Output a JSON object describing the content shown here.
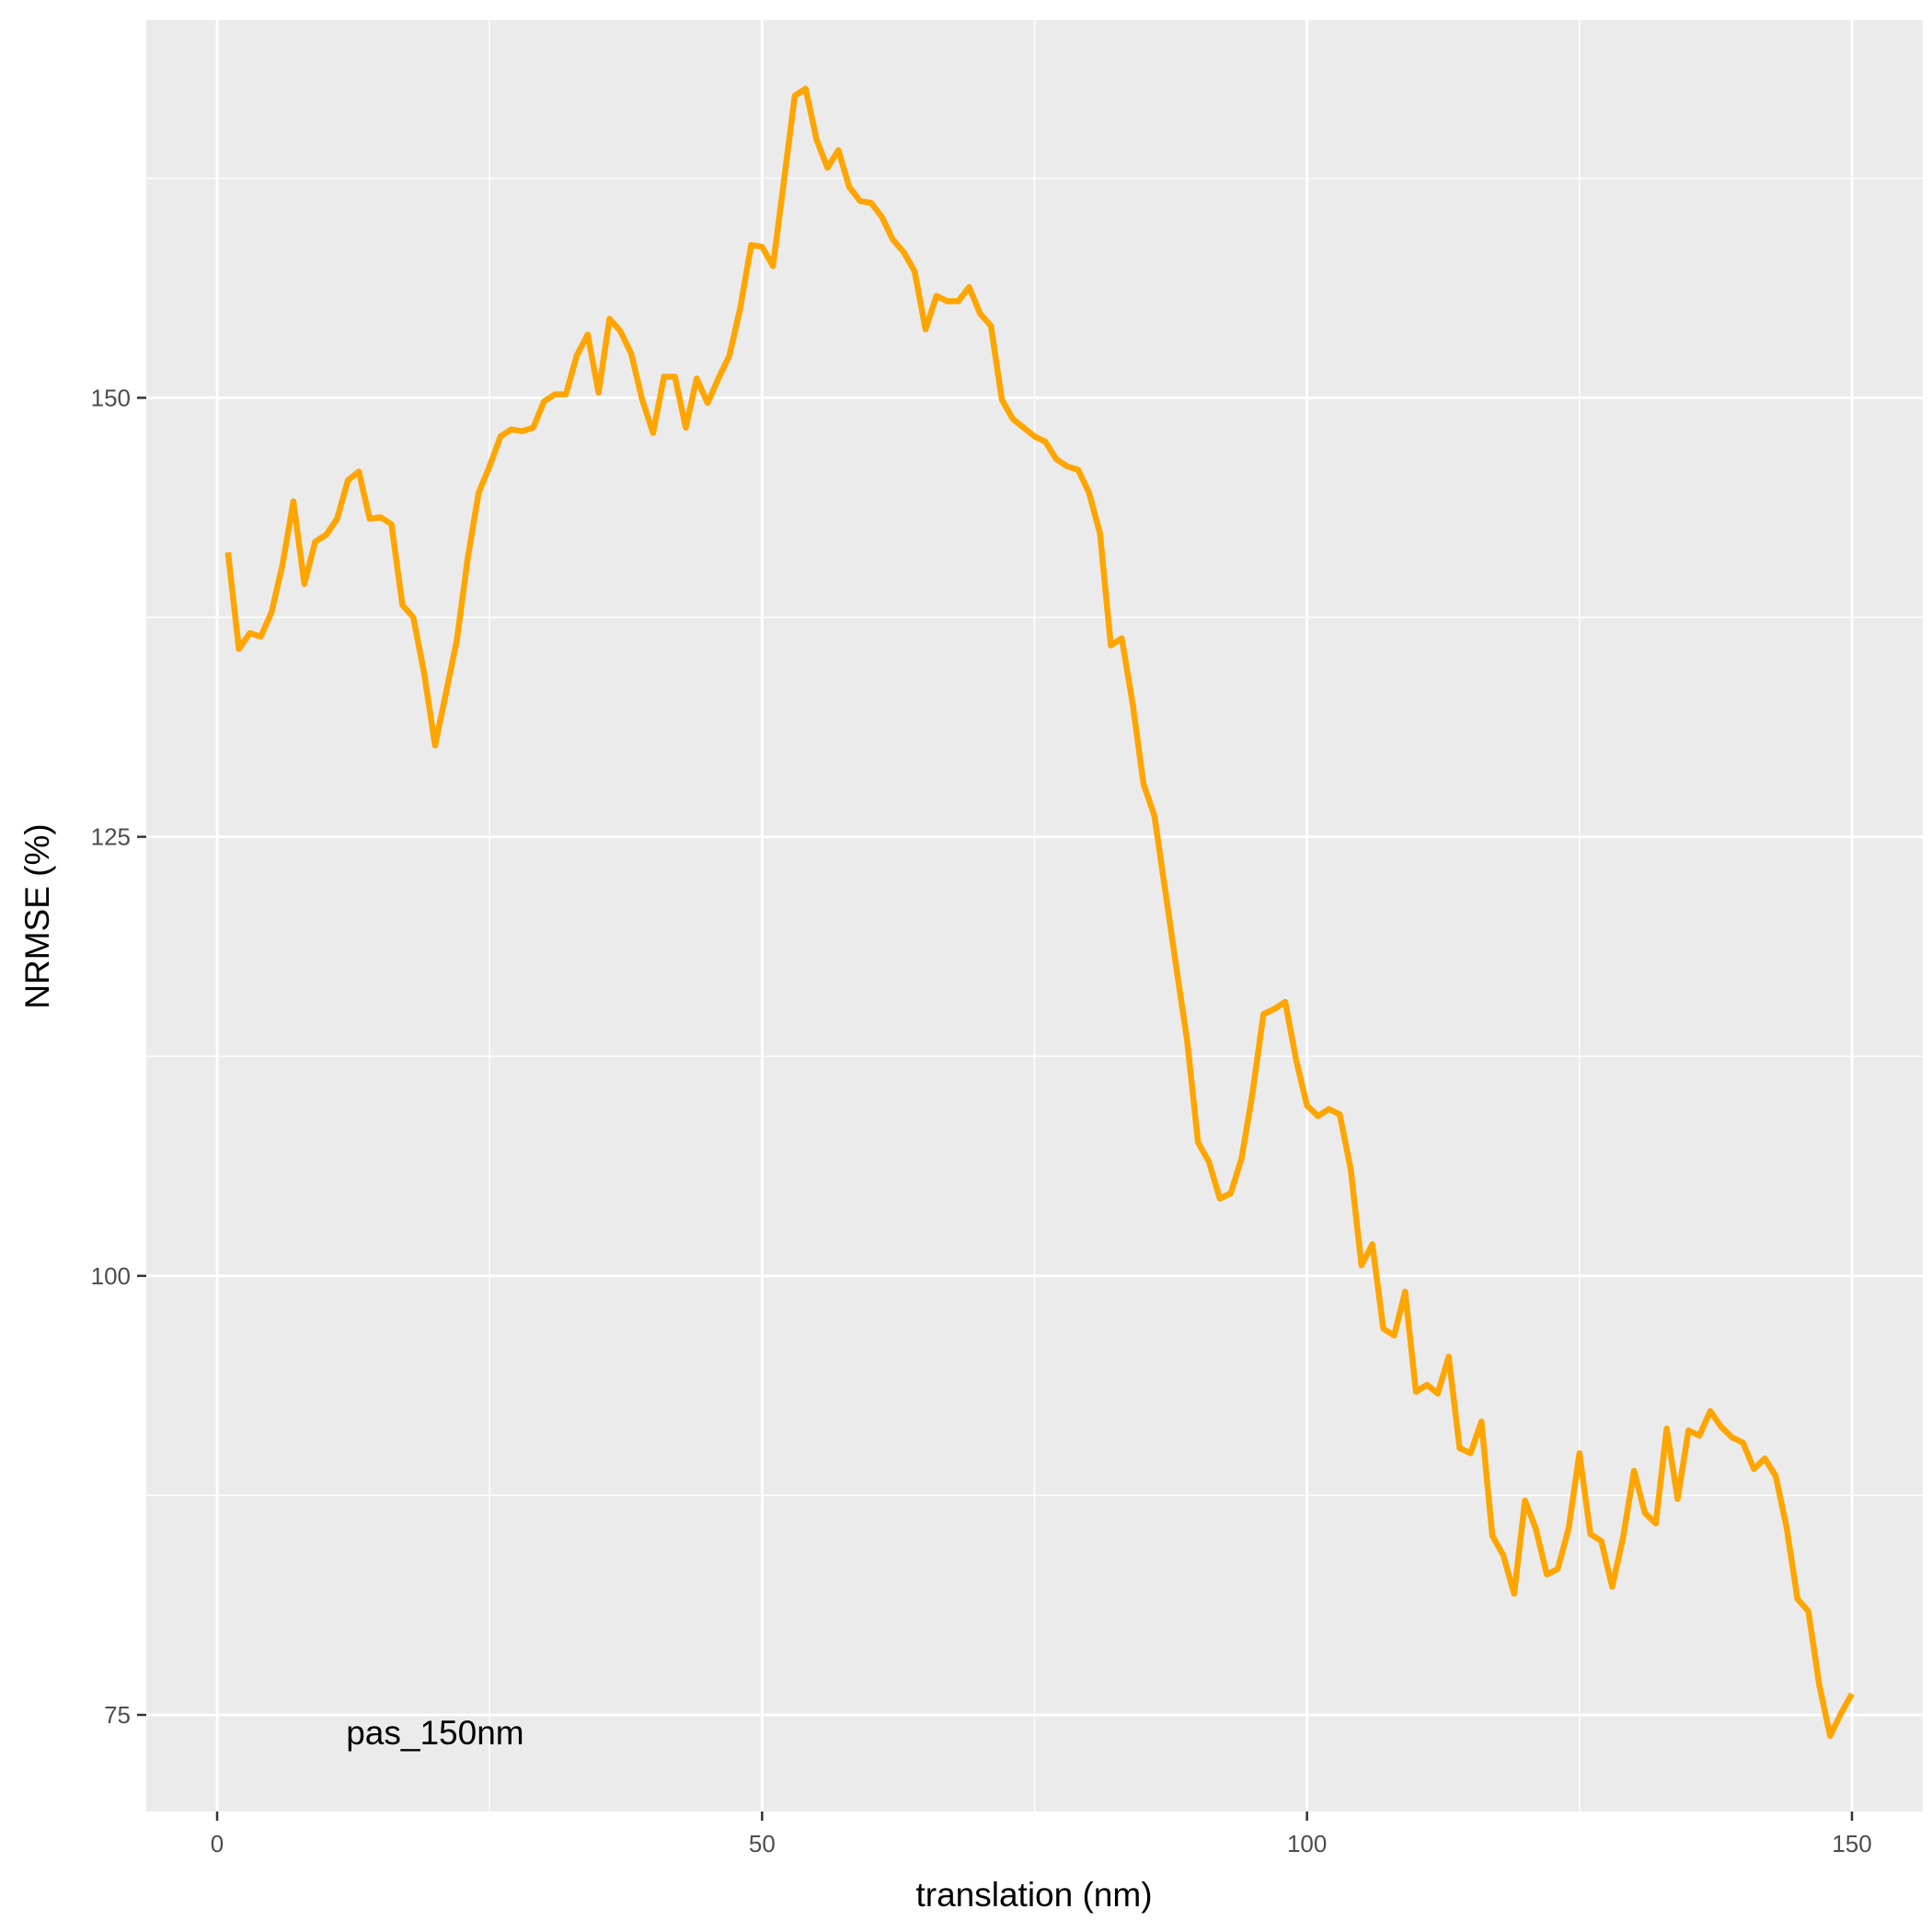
{
  "chart_data": {
    "type": "line",
    "xlabel": "translation (nm)",
    "ylabel": "NRMSE (%)",
    "annotation": {
      "text": "pas_150nm",
      "x": 20,
      "y": 74
    },
    "xlim": [
      -6.5,
      156.5
    ],
    "ylim": [
      69.5,
      171.5
    ],
    "xticks": [
      0,
      50,
      100,
      150
    ],
    "xtick_labels": [
      "0",
      "50",
      "100",
      "150"
    ],
    "yticks": [
      75,
      100,
      125,
      150
    ],
    "ytick_labels": [
      "75",
      "100",
      "125",
      "150"
    ],
    "grid": true,
    "colors": {
      "line": "#FFA500",
      "panel": "#EBEBEB",
      "grid": "#FFFFFF",
      "tick": "#333333"
    },
    "series": [
      {
        "x": [
          1,
          2,
          3,
          4,
          5,
          6,
          7,
          8,
          9,
          10,
          11,
          12,
          13,
          14,
          15,
          16,
          17,
          18,
          19,
          20,
          21,
          22,
          23,
          24,
          25,
          26,
          27,
          28,
          29,
          30,
          31,
          32,
          33,
          34,
          35,
          36,
          37,
          38,
          39,
          40,
          41,
          42,
          43,
          44,
          45,
          46,
          47,
          48,
          49,
          50,
          51,
          52,
          53,
          54,
          55,
          56,
          57,
          58,
          59,
          60,
          61,
          62,
          63,
          64,
          65,
          66,
          67,
          68,
          69,
          70,
          71,
          72,
          73,
          74,
          75,
          76,
          77,
          78,
          79,
          80,
          81,
          82,
          83,
          84,
          85,
          86,
          87,
          88,
          89,
          90,
          91,
          92,
          93,
          94,
          95,
          96,
          97,
          98,
          99,
          100,
          101,
          102,
          103,
          104,
          105,
          106,
          107,
          108,
          109,
          110,
          111,
          112,
          113,
          114,
          115,
          116,
          117,
          118,
          119,
          120,
          121,
          122,
          123,
          124,
          125,
          126,
          127,
          128,
          129,
          130,
          131,
          132,
          133,
          134,
          135,
          136,
          137,
          138,
          139,
          140,
          141,
          142,
          143,
          144,
          145,
          146,
          147,
          148,
          149,
          150
        ],
        "values": [
          141.2,
          135.7,
          136.6,
          136.4,
          137.8,
          140.5,
          144.1,
          139.4,
          141.8,
          142.2,
          143.1,
          145.3,
          145.8,
          143.1,
          143.2,
          142.8,
          138.2,
          137.5,
          134.3,
          130.2,
          133.2,
          136.2,
          140.9,
          144.6,
          146.1,
          147.8,
          148.2,
          148.1,
          148.3,
          149.8,
          150.2,
          150.2,
          152.4,
          153.6,
          150.3,
          154.5,
          153.8,
          152.5,
          149.9,
          148.0,
          151.2,
          151.2,
          148.3,
          151.1,
          149.7,
          151.1,
          152.4,
          155.1,
          158.7,
          158.6,
          157.5,
          162.3,
          167.2,
          167.6,
          164.7,
          163.1,
          164.1,
          162.0,
          161.2,
          161.1,
          160.3,
          159.0,
          158.3,
          157.2,
          153.9,
          155.8,
          155.5,
          155.5,
          156.3,
          154.8,
          154.1,
          149.9,
          148.8,
          148.3,
          147.8,
          147.5,
          146.5,
          146.1,
          145.9,
          144.6,
          142.3,
          135.9,
          136.3,
          132.6,
          128.0,
          126.2,
          121.9,
          117.6,
          113.4,
          107.6,
          106.5,
          104.4,
          104.7,
          106.7,
          110.4,
          114.9,
          115.2,
          115.6,
          112.3,
          109.7,
          109.1,
          109.5,
          109.2,
          106.1,
          100.6,
          101.8,
          97.0,
          96.6,
          99.1,
          93.4,
          93.8,
          93.3,
          95.4,
          90.2,
          89.9,
          91.7,
          85.2,
          84.1,
          81.9,
          87.2,
          85.6,
          83.0,
          83.3,
          85.6,
          89.9,
          85.3,
          84.9,
          82.3,
          85.1,
          88.9,
          86.5,
          85.9,
          91.3,
          87.3,
          91.2,
          90.9,
          92.3,
          91.4,
          90.8,
          90.5,
          89.0,
          89.6,
          88.6,
          85.7,
          81.6,
          80.9,
          76.7,
          73.8,
          75.1,
          76.2
        ]
      }
    ]
  }
}
